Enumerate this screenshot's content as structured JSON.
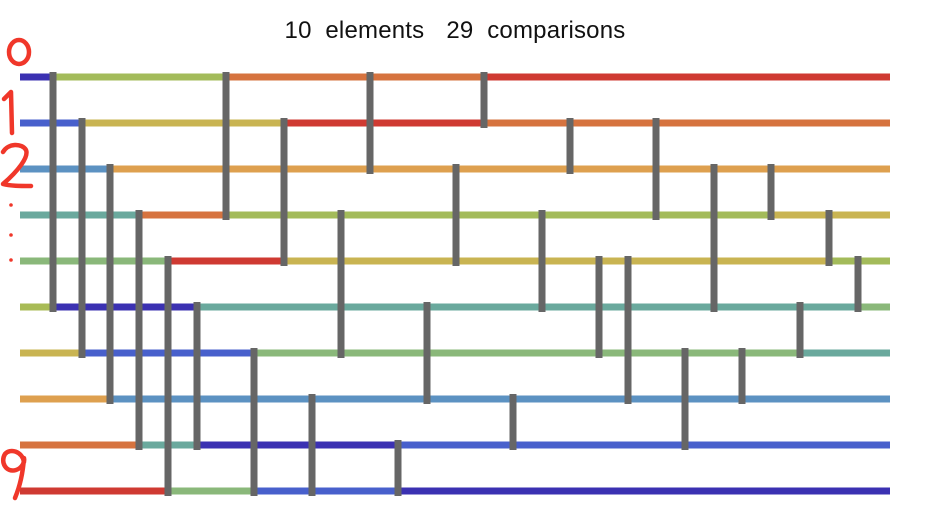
{
  "header": {
    "elements_count": "10",
    "elements_label": "elements",
    "comparisons_count": "29",
    "comparisons_label": "comparisons"
  },
  "network": {
    "wire_count": 10,
    "comparator_color": "#666666",
    "wire_segments": [
      [
        [
          "#3b31b2",
          20,
          53
        ],
        [
          "#a3bb5a",
          53,
          226
        ],
        [
          "#d6733f",
          226,
          370
        ],
        [
          "#d6733f",
          370,
          484
        ],
        [
          "#cf3a32",
          484,
          890
        ]
      ],
      [
        [
          "#4860cc",
          20,
          82
        ],
        [
          "#c9b452",
          82,
          284
        ],
        [
          "#cf3a32",
          284,
          370
        ],
        [
          "#cf3a32",
          370,
          484
        ],
        [
          "#d6733f",
          484,
          570
        ],
        [
          "#d6733f",
          570,
          656
        ],
        [
          "#d6733f",
          656,
          890
        ]
      ],
      [
        [
          "#5c92c2",
          20,
          110
        ],
        [
          "#dea04f",
          110,
          890
        ]
      ],
      [
        [
          "#6aa99d",
          20,
          139
        ],
        [
          "#d6733f",
          139,
          226
        ],
        [
          "#a3bb5a",
          226,
          656
        ],
        [
          "#a3bb5a",
          656,
          771
        ],
        [
          "#c9b452",
          771,
          890
        ]
      ],
      [
        [
          "#8ab87a",
          20,
          168
        ],
        [
          "#cf3a32",
          168,
          284
        ],
        [
          "#c9b452",
          284,
          829
        ],
        [
          "#a3bb5a",
          829,
          890
        ]
      ],
      [
        [
          "#a8bb56",
          20,
          53
        ],
        [
          "#3b31b2",
          53,
          197
        ],
        [
          "#6aa99d",
          197,
          858
        ],
        [
          "#8ab87a",
          858,
          890
        ]
      ],
      [
        [
          "#c9b452",
          20,
          82
        ],
        [
          "#4860cc",
          82,
          254
        ],
        [
          "#8ab87a",
          254,
          800
        ],
        [
          "#6aa99d",
          800,
          890
        ]
      ],
      [
        [
          "#dea04f",
          20,
          110
        ],
        [
          "#5c92c2",
          110,
          890
        ]
      ],
      [
        [
          "#d6733f",
          20,
          139
        ],
        [
          "#6aa99d",
          139,
          197
        ],
        [
          "#3b31b2",
          197,
          398
        ],
        [
          "#4860cc",
          398,
          890
        ]
      ],
      [
        [
          "#cf3a32",
          20,
          168
        ],
        [
          "#8ab87a",
          168,
          254
        ],
        [
          "#4860cc",
          254,
          398
        ],
        [
          "#3b31b2",
          398,
          890
        ]
      ]
    ],
    "comparators": [
      [
        53,
        0,
        5
      ],
      [
        82,
        1,
        6
      ],
      [
        110,
        2,
        7
      ],
      [
        139,
        3,
        8
      ],
      [
        168,
        4,
        9
      ],
      [
        197,
        5,
        8
      ],
      [
        226,
        0,
        3
      ],
      [
        254,
        6,
        9
      ],
      [
        284,
        1,
        4
      ],
      [
        312,
        7,
        9
      ],
      [
        341,
        3,
        6
      ],
      [
        370,
        0,
        2
      ],
      [
        398,
        8,
        9
      ],
      [
        427,
        5,
        7
      ],
      [
        456,
        2,
        4
      ],
      [
        484,
        0,
        1
      ],
      [
        513,
        7,
        8
      ],
      [
        542,
        3,
        5
      ],
      [
        570,
        1,
        2
      ],
      [
        599,
        4,
        6
      ],
      [
        628,
        4,
        7
      ],
      [
        656,
        1,
        3
      ],
      [
        685,
        6,
        8
      ],
      [
        714,
        2,
        5
      ],
      [
        742,
        6,
        7
      ],
      [
        771,
        2,
        3
      ],
      [
        800,
        5,
        6
      ],
      [
        829,
        3,
        4
      ],
      [
        858,
        4,
        5
      ]
    ]
  },
  "annotations": {
    "index_labels": [
      "0",
      "1",
      "2",
      "9"
    ],
    "color": "#f0372a"
  }
}
